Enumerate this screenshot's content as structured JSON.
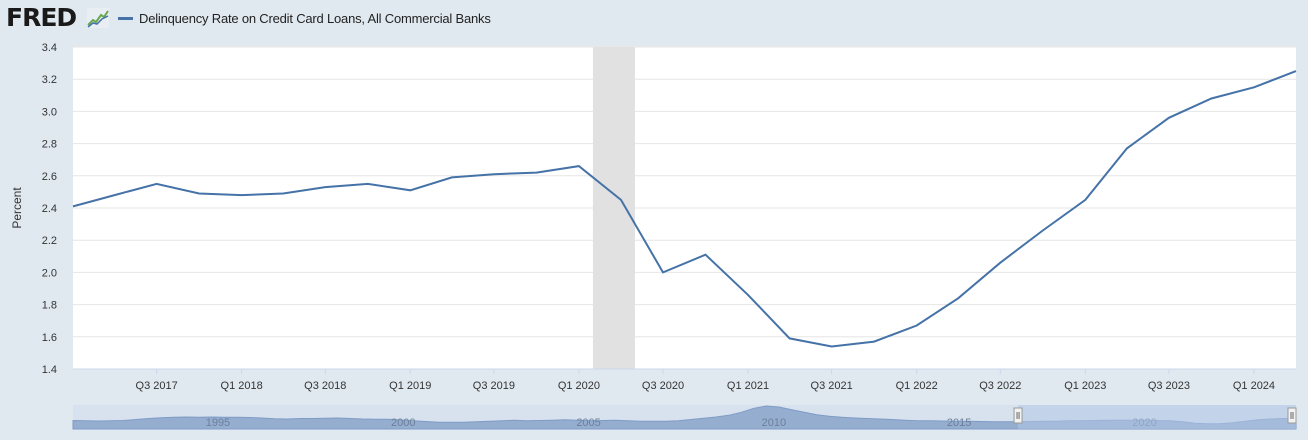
{
  "header": {
    "logo_text": "FRED",
    "logo_icon": "fred-chart-icon"
  },
  "colors": {
    "background": "#e1e9f0",
    "plot_background": "#ffffff",
    "series_line": "#4572a7",
    "recession_band": "#e1e1e1",
    "navigator_fill": "#95aed0",
    "navigator_selection": "#b3c6e6"
  },
  "chart_data": {
    "type": "line",
    "legend": "Delinquency Rate on Credit Card Loans, All Commercial Banks",
    "ylabel": "Percent",
    "ylim": [
      1.4,
      3.4
    ],
    "yticks": [
      "1.4",
      "1.6",
      "1.8",
      "2.0",
      "2.2",
      "2.4",
      "2.6",
      "2.8",
      "3.0",
      "3.2",
      "3.4"
    ],
    "xticks": [
      "Q3 2017",
      "Q1 2018",
      "Q3 2018",
      "Q1 2019",
      "Q3 2019",
      "Q1 2020",
      "Q3 2020",
      "Q1 2021",
      "Q3 2021",
      "Q1 2022",
      "Q3 2022",
      "Q1 2023",
      "Q3 2023",
      "Q1 2024"
    ],
    "grid": true,
    "recession_shading": {
      "start": "2020-01-01",
      "end": "2020-04-01"
    },
    "series": [
      {
        "name": "Delinquency Rate on Credit Card Loans, All Commercial Banks",
        "x": [
          "2017-01-01",
          "2017-04-01",
          "2017-07-01",
          "2017-10-01",
          "2018-01-01",
          "2018-04-01",
          "2018-07-01",
          "2018-10-01",
          "2019-01-01",
          "2019-04-01",
          "2019-07-01",
          "2019-10-01",
          "2020-01-01",
          "2020-04-01",
          "2020-07-01",
          "2020-10-01",
          "2021-01-01",
          "2021-04-01",
          "2021-07-01",
          "2021-10-01",
          "2022-01-01",
          "2022-04-01",
          "2022-07-01",
          "2022-10-01",
          "2023-01-01",
          "2023-04-01",
          "2023-07-01",
          "2023-10-01",
          "2024-01-01",
          "2024-04-01"
        ],
        "values": [
          2.41,
          2.48,
          2.55,
          2.49,
          2.48,
          2.49,
          2.53,
          2.55,
          2.51,
          2.59,
          2.61,
          2.62,
          2.66,
          2.45,
          2.0,
          2.11,
          1.86,
          1.59,
          1.54,
          1.57,
          1.67,
          1.84,
          2.06,
          2.26,
          2.45,
          2.77,
          2.96,
          3.08,
          3.15,
          3.25
        ]
      }
    ]
  },
  "navigator": {
    "labels": [
      "1995",
      "2000",
      "2005",
      "2010",
      "2015",
      "2020"
    ],
    "label_years": [
      1995,
      2000,
      2005,
      2010,
      2015,
      2020
    ],
    "year_range": [
      1991.5,
      2024.5
    ],
    "selection_years": [
      2017.0,
      2024.5
    ],
    "values": [
      2.55,
      2.45,
      2.4,
      2.45,
      2.55,
      2.85,
      3.15,
      3.35,
      3.55,
      3.6,
      3.55,
      3.6,
      3.5,
      3.55,
      3.45,
      3.3,
      3.1,
      3.0,
      3.15,
      3.15,
      3.25,
      3.3,
      3.15,
      3.0,
      2.95,
      2.95,
      2.7,
      2.45,
      2.25,
      2.05,
      2.0,
      2.0,
      2.15,
      2.3,
      2.5,
      2.6,
      2.5,
      2.55,
      2.65,
      2.75,
      2.65,
      2.5,
      2.55,
      2.6,
      2.5,
      2.35,
      2.3,
      2.3,
      2.5,
      2.85,
      3.25,
      3.6,
      4.1,
      5.0,
      6.2,
      6.9,
      6.6,
      5.8,
      5.0,
      4.3,
      3.8,
      3.5,
      3.3,
      3.15,
      3.0,
      2.85,
      2.65,
      2.5,
      2.45,
      2.4,
      2.35,
      2.3,
      2.25,
      2.2,
      2.15,
      2.2,
      2.25,
      2.3,
      2.35,
      2.45,
      2.5,
      2.55,
      2.6,
      2.65,
      2.6,
      2.6,
      2.55,
      2.45,
      2.2,
      1.75,
      1.55,
      1.6,
      1.9,
      2.3,
      2.8,
      3.0,
      3.15,
      3.25
    ]
  }
}
